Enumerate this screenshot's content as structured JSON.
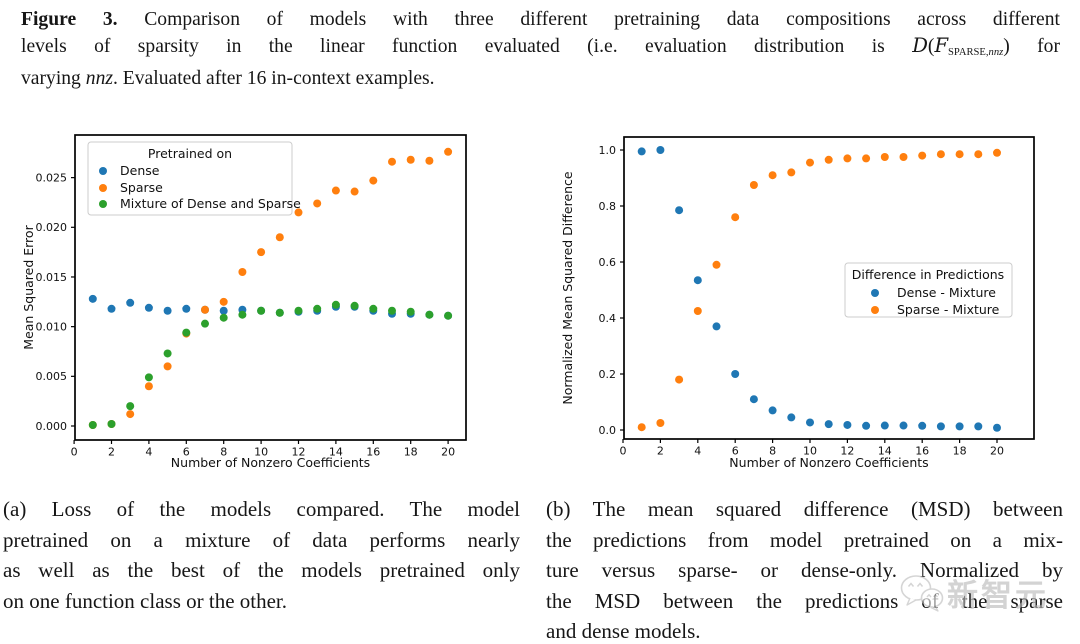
{
  "figure_caption": {
    "label": "Figure 3.",
    "line1": " Comparison of models with three different pretraining data compositions across different",
    "line2_pre": "levels of sparsity in the linear function evaluated (i.e. evaluation distribution is ",
    "math": {
      "D": "D",
      "open": "(",
      "F": "F",
      "sub_caps": "SPARSE,",
      "sub_var": "nnz",
      "close": ")"
    },
    "line2_post": " for",
    "line3_pre": "varying ",
    "line3_var": "nnz",
    "line3_post": ". Evaluated after 16 in-context examples."
  },
  "subcaptions": {
    "a": {
      "lines": [
        "(a) Loss of the models compared.  The model",
        "pretrained on a mixture of data performs nearly",
        "as well as the best of the models pretrained only",
        "on one function class or the other."
      ]
    },
    "b": {
      "lines": [
        "(b) The mean squared difference (MSD) between",
        "the predictions from model pretrained on a mix-",
        "ture versus sparse- or dense-only.  Normalized by",
        "the MSD between the predictions of the sparse",
        "and dense models."
      ]
    }
  },
  "watermark": {
    "text": "新智元",
    "icon": "wechat-chat-bubbles-icon"
  },
  "colors": {
    "dense": "#1f77b4",
    "sparse": "#ff7f0e",
    "mixture": "#2ca02c"
  },
  "chart_data": [
    {
      "type": "scatter",
      "title": "",
      "xlabel": "Number of Nonzero Coefficients",
      "ylabel": "Mean Squared Error",
      "x": [
        1,
        2,
        3,
        4,
        5,
        6,
        7,
        8,
        9,
        10,
        11,
        12,
        13,
        14,
        15,
        16,
        17,
        18,
        19,
        20
      ],
      "xticks": [
        0,
        2,
        4,
        6,
        8,
        10,
        12,
        14,
        16,
        18,
        20
      ],
      "xtick_labels": [
        "0",
        "2",
        "4",
        "6",
        "8",
        "10",
        "12",
        "14",
        "16",
        "18",
        "20"
      ],
      "yticks": [
        0.0,
        0.005,
        0.01,
        0.015,
        0.02,
        0.025
      ],
      "ytick_labels": [
        "0.000",
        "0.005",
        "0.010",
        "0.015",
        "0.020",
        "0.025"
      ],
      "xlim": [
        0,
        21
      ],
      "ylim": [
        -0.0014,
        0.0293
      ],
      "grid": false,
      "legend": {
        "title": "Pretrained on",
        "position": "upper-left"
      },
      "series": [
        {
          "name": "Dense",
          "color": "#1f77b4",
          "values": [
            0.0128,
            0.0118,
            0.0124,
            0.0119,
            0.0116,
            0.0118,
            0.0117,
            0.0116,
            0.0117,
            0.0116,
            0.0114,
            0.0115,
            0.0116,
            0.012,
            0.012,
            0.0116,
            0.0113,
            0.0113,
            0.0112,
            0.0111
          ]
        },
        {
          "name": "Sparse",
          "color": "#ff7f0e",
          "values": [
            0.0001,
            0.0002,
            0.0012,
            0.004,
            0.006,
            0.0093,
            0.0117,
            0.0125,
            0.0155,
            0.0175,
            0.019,
            0.0215,
            0.0224,
            0.0237,
            0.0236,
            0.0247,
            0.0266,
            0.0268,
            0.0267,
            0.0276
          ]
        },
        {
          "name": "Mixture of Dense and Sparse",
          "color": "#2ca02c",
          "values": [
            0.0001,
            0.0002,
            0.002,
            0.0049,
            0.0073,
            0.0094,
            0.0103,
            0.0109,
            0.0112,
            0.0116,
            0.0114,
            0.0116,
            0.0118,
            0.0122,
            0.0121,
            0.0118,
            0.0116,
            0.0115,
            0.0112,
            0.0111
          ]
        }
      ]
    },
    {
      "type": "scatter",
      "title": "",
      "xlabel": "Number of Nonzero Coefficients",
      "ylabel": "Normalized Mean Squared Difference",
      "x": [
        1,
        2,
        3,
        4,
        5,
        6,
        7,
        8,
        9,
        10,
        11,
        12,
        13,
        14,
        15,
        16,
        17,
        18,
        19,
        20
      ],
      "xticks": [
        0,
        2,
        4,
        6,
        8,
        10,
        12,
        14,
        16,
        18,
        20
      ],
      "xtick_labels": [
        "0",
        "2",
        "4",
        "6",
        "8",
        "10",
        "12",
        "14",
        "16",
        "18",
        "20"
      ],
      "yticks": [
        0.0,
        0.2,
        0.4,
        0.6,
        0.8,
        1.0
      ],
      "ytick_labels": [
        "0.0",
        "0.2",
        "0.4",
        "0.6",
        "0.8",
        "1.0"
      ],
      "xlim": [
        0,
        22
      ],
      "ylim": [
        -0.032,
        1.046
      ],
      "grid": false,
      "legend": {
        "title": "Difference in Predictions",
        "position": "center-right"
      },
      "series": [
        {
          "name": "Dense - Mixture",
          "color": "#1f77b4",
          "values": [
            0.995,
            1.0,
            0.785,
            0.535,
            0.37,
            0.2,
            0.11,
            0.07,
            0.045,
            0.027,
            0.021,
            0.018,
            0.015,
            0.016,
            0.016,
            0.015,
            0.013,
            0.013,
            0.013,
            0.008
          ]
        },
        {
          "name": "Sparse - Mixture",
          "color": "#ff7f0e",
          "values": [
            0.01,
            0.025,
            0.18,
            0.425,
            0.59,
            0.76,
            0.875,
            0.91,
            0.92,
            0.955,
            0.965,
            0.97,
            0.97,
            0.975,
            0.975,
            0.98,
            0.985,
            0.985,
            0.985,
            0.99
          ]
        }
      ]
    }
  ]
}
